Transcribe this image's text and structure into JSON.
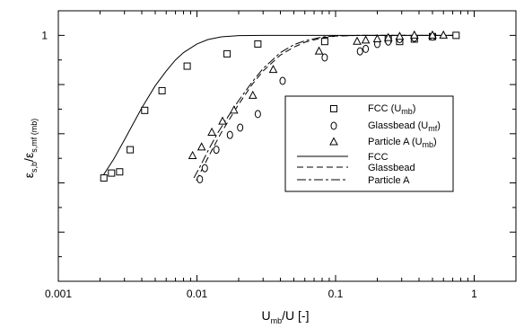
{
  "chart_data": {
    "type": "scatter",
    "x_scale": "log",
    "xlim": [
      0.001,
      2.0
    ],
    "ylim": [
      0.0,
      1.1
    ],
    "x_ticks": [
      {
        "value": 0.001,
        "label": "0.001"
      },
      {
        "value": 0.01,
        "label": "0.01"
      },
      {
        "value": 0.1,
        "label": "0.1"
      },
      {
        "value": 1,
        "label": "1"
      }
    ],
    "y_ticks": [
      {
        "value": 1.0,
        "label": "1"
      }
    ],
    "xlabel": {
      "main": "U",
      "sub": "mb",
      "rest": "/U [-]"
    },
    "ylabel": {
      "eps1": "ε",
      "sub1": "s,b",
      "slash": "/",
      "eps2": "ε",
      "sub2": "s,mf (mb)"
    },
    "grid": false,
    "legend_position": "center-right",
    "legend": [
      {
        "main": "FCC (U",
        "sub": "mb",
        "end": ")",
        "marker": "square"
      },
      {
        "main": "Glassbead (U",
        "sub": "mf",
        "end": ")",
        "marker": "circle"
      },
      {
        "main": "Particle A (U",
        "sub": "mb",
        "end": ")",
        "marker": "triangle"
      },
      {
        "main": "FCC",
        "sub": "",
        "end": "",
        "line": "solid"
      },
      {
        "main": "Glassbead",
        "sub": "",
        "end": "",
        "line": "dashed"
      },
      {
        "main": "Particle A",
        "sub": "",
        "end": "",
        "line": "dashdot"
      }
    ],
    "series": [
      {
        "name": "FCC (Umb)",
        "marker": "square",
        "points": [
          [
            0.00213,
            0.42
          ],
          [
            0.00242,
            0.44
          ],
          [
            0.00277,
            0.445
          ],
          [
            0.0033,
            0.535
          ],
          [
            0.0042,
            0.695
          ],
          [
            0.0056,
            0.775
          ],
          [
            0.0085,
            0.875
          ],
          [
            0.0165,
            0.925
          ],
          [
            0.0275,
            0.965
          ],
          [
            0.0835,
            0.975
          ],
          [
            0.24,
            0.985
          ],
          [
            0.29,
            0.975
          ],
          [
            0.37,
            0.985
          ],
          [
            0.5,
            0.995
          ],
          [
            0.74,
            1.0
          ]
        ]
      },
      {
        "name": "Glassbead (Umf)",
        "marker": "circle",
        "points": [
          [
            0.0105,
            0.415
          ],
          [
            0.0114,
            0.46
          ],
          [
            0.0138,
            0.535
          ],
          [
            0.0173,
            0.595
          ],
          [
            0.0205,
            0.625
          ],
          [
            0.0275,
            0.68
          ],
          [
            0.0415,
            0.815
          ],
          [
            0.0835,
            0.91
          ],
          [
            0.15,
            0.935
          ],
          [
            0.165,
            0.945
          ],
          [
            0.2,
            0.965
          ],
          [
            0.24,
            0.975
          ],
          [
            0.29,
            0.985
          ],
          [
            0.37,
            0.99
          ],
          [
            0.5,
            0.995
          ]
        ]
      },
      {
        "name": "Particle A (Umb)",
        "marker": "triangle",
        "points": [
          [
            0.0093,
            0.51
          ],
          [
            0.0108,
            0.545
          ],
          [
            0.0128,
            0.605
          ],
          [
            0.0153,
            0.65
          ],
          [
            0.0185,
            0.695
          ],
          [
            0.0253,
            0.755
          ],
          [
            0.0355,
            0.86
          ],
          [
            0.076,
            0.935
          ],
          [
            0.143,
            0.975
          ],
          [
            0.165,
            0.98
          ],
          [
            0.2,
            0.985
          ],
          [
            0.24,
            0.99
          ],
          [
            0.29,
            0.995
          ],
          [
            0.37,
            1.0
          ],
          [
            0.5,
            1.0
          ],
          [
            0.6,
            1.0
          ]
        ]
      }
    ],
    "lines": [
      {
        "name": "FCC",
        "style": "solid",
        "points": [
          [
            0.00205,
            0.42
          ],
          [
            0.0025,
            0.495
          ],
          [
            0.003,
            0.575
          ],
          [
            0.0035,
            0.645
          ],
          [
            0.004,
            0.705
          ],
          [
            0.005,
            0.795
          ],
          [
            0.006,
            0.855
          ],
          [
            0.007,
            0.9
          ],
          [
            0.008,
            0.93
          ],
          [
            0.01,
            0.965
          ],
          [
            0.012,
            0.983
          ],
          [
            0.015,
            0.994
          ],
          [
            0.02,
            0.999
          ],
          [
            0.03,
            1.0
          ],
          [
            0.1,
            1.0
          ],
          [
            0.3,
            1.0
          ],
          [
            0.75,
            1.0
          ]
        ]
      },
      {
        "name": "Glassbead",
        "style": "dashed",
        "points": [
          [
            0.0099,
            0.41
          ],
          [
            0.011,
            0.46
          ],
          [
            0.013,
            0.54
          ],
          [
            0.015,
            0.605
          ],
          [
            0.02,
            0.72
          ],
          [
            0.025,
            0.8
          ],
          [
            0.03,
            0.855
          ],
          [
            0.04,
            0.92
          ],
          [
            0.05,
            0.952
          ],
          [
            0.06,
            0.972
          ],
          [
            0.08,
            0.99
          ],
          [
            0.1,
            0.997
          ],
          [
            0.15,
            1.0
          ],
          [
            0.3,
            1.0
          ],
          [
            0.75,
            1.0
          ]
        ]
      },
      {
        "name": "Particle A",
        "style": "dashdot",
        "points": [
          [
            0.0095,
            0.42
          ],
          [
            0.0105,
            0.465
          ],
          [
            0.012,
            0.53
          ],
          [
            0.014,
            0.6
          ],
          [
            0.017,
            0.675
          ],
          [
            0.02,
            0.735
          ],
          [
            0.025,
            0.81
          ],
          [
            0.03,
            0.865
          ],
          [
            0.04,
            0.93
          ],
          [
            0.05,
            0.962
          ],
          [
            0.06,
            0.978
          ],
          [
            0.08,
            0.993
          ],
          [
            0.1,
            0.998
          ],
          [
            0.15,
            1.0
          ],
          [
            0.3,
            1.0
          ],
          [
            0.75,
            1.0
          ]
        ]
      }
    ]
  }
}
